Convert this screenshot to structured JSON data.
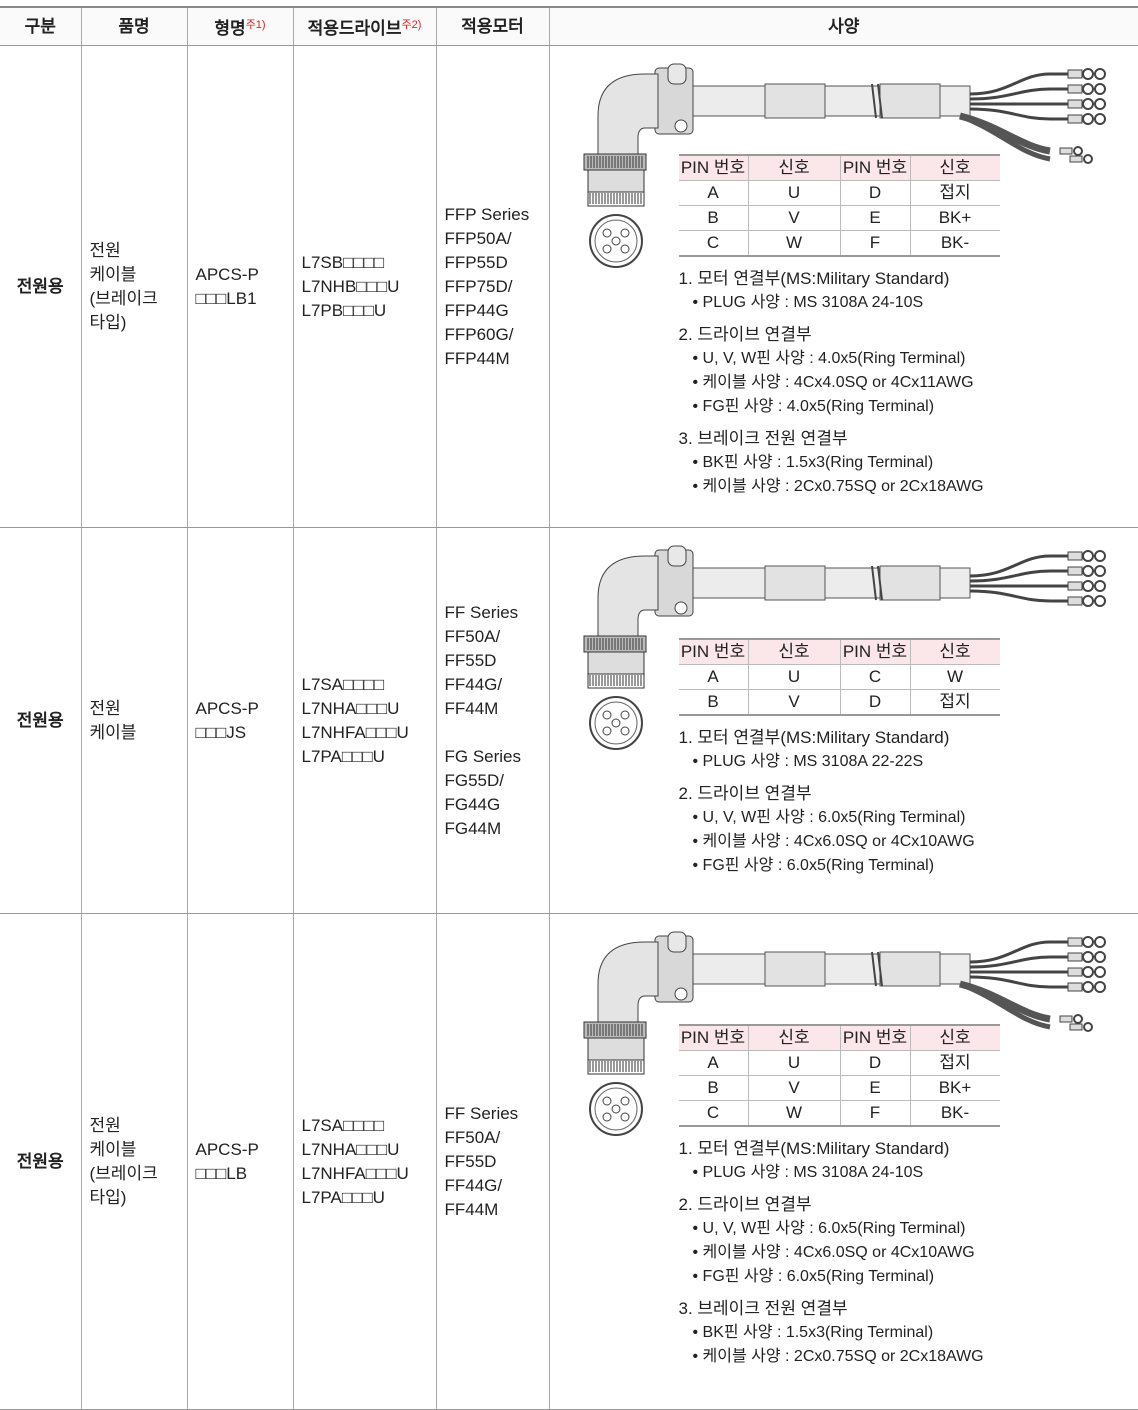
{
  "header": {
    "category": "구분",
    "product": "품명",
    "model": "형명",
    "model_note": "주1)",
    "drive": "적용드라이브",
    "drive_note": "주2)",
    "motor": "적용모터",
    "spec": "사양"
  },
  "rows": [
    {
      "category": "전원용",
      "product": [
        "전원",
        "케이블",
        "(브레이크",
        "타입)"
      ],
      "model": [
        "APCS-P",
        "□□□LB1"
      ],
      "drives": [
        "L7SB□□□□",
        "L7NHB□□□U",
        "L7PB□□□U"
      ],
      "motors": [
        [
          "FFP Series",
          "FFP50A/",
          "FFP55D",
          "FFP75D/",
          "FFP44G",
          "FFP60G/",
          "FFP44M"
        ]
      ],
      "pin_table": {
        "header": [
          "PIN 번호",
          "신호",
          "PIN 번호",
          "신호"
        ],
        "rows": [
          [
            "A",
            "U",
            "D",
            "접지"
          ],
          [
            "B",
            "V",
            "E",
            "BK+"
          ],
          [
            "C",
            "W",
            "F",
            "BK-"
          ]
        ]
      },
      "sections": [
        {
          "title": "1. 모터 연결부(MS:Military Standard)",
          "items": [
            "PLUG 사양 : MS 3108A 24-10S"
          ]
        },
        {
          "title": "2. 드라이브 연결부",
          "items": [
            "U, V, W핀 사양 : 4.0x5(Ring Terminal)",
            "케이블 사양 : 4Cx4.0SQ or 4Cx11AWG",
            "FG핀 사양 : 4.0x5(Ring Terminal)"
          ]
        },
        {
          "title": "3. 브레이크 전원 연결부",
          "items": [
            "BK핀 사양 : 1.5x3(Ring Terminal)",
            "케이블 사양 : 2Cx0.75SQ or 2Cx18AWG"
          ]
        }
      ]
    },
    {
      "category": "전원용",
      "product": [
        "전원",
        "케이블"
      ],
      "model": [
        "APCS-P",
        "□□□JS"
      ],
      "drives": [
        "L7SA□□□□",
        "L7NHA□□□U",
        "L7NHFA□□□U",
        "L7PA□□□U"
      ],
      "motors": [
        [
          "FF Series",
          "FF50A/",
          "FF55D",
          "FF44G/",
          "FF44M"
        ],
        [
          "FG Series",
          "FG55D/",
          "FG44G",
          "FG44M"
        ]
      ],
      "pin_table": {
        "header": [
          "PIN 번호",
          "신호",
          "PIN 번호",
          "신호"
        ],
        "rows": [
          [
            "A",
            "U",
            "C",
            "W"
          ],
          [
            "B",
            "V",
            "D",
            "접지"
          ]
        ]
      },
      "sections": [
        {
          "title": "1. 모터 연결부(MS:Military Standard)",
          "items": [
            "PLUG 사양 : MS 3108A 22-22S"
          ]
        },
        {
          "title": "2. 드라이브 연결부",
          "items": [
            "U, V, W핀 사양 : 6.0x5(Ring Terminal)",
            "케이블 사양 : 4Cx6.0SQ or 4Cx10AWG",
            "FG핀 사양 : 6.0x5(Ring Terminal)"
          ]
        }
      ]
    },
    {
      "category": "전원용",
      "product": [
        "전원",
        "케이블",
        "(브레이크",
        "타입)"
      ],
      "model": [
        "APCS-P",
        "□□□LB"
      ],
      "drives": [
        "L7SA□□□□",
        "L7NHA□□□U",
        "L7NHFA□□□U",
        "L7PA□□□U"
      ],
      "motors": [
        [
          "FF Series",
          "FF50A/",
          "FF55D",
          "FF44G/",
          "FF44M"
        ]
      ],
      "pin_table": {
        "header": [
          "PIN 번호",
          "신호",
          "PIN 번호",
          "신호"
        ],
        "rows": [
          [
            "A",
            "U",
            "D",
            "접지"
          ],
          [
            "B",
            "V",
            "E",
            "BK+"
          ],
          [
            "C",
            "W",
            "F",
            "BK-"
          ]
        ]
      },
      "sections": [
        {
          "title": "1. 모터 연결부(MS:Military Standard)",
          "items": [
            "PLUG 사양 : MS 3108A 24-10S"
          ]
        },
        {
          "title": "2. 드라이브 연결부",
          "items": [
            "U, V, W핀 사양 : 6.0x5(Ring Terminal)",
            "케이블 사양 : 4Cx6.0SQ or 4Cx10AWG",
            "FG핀 사양 : 6.0x5(Ring Terminal)"
          ]
        },
        {
          "title": "3. 브레이크 전원 연결부",
          "items": [
            "BK핀 사양 : 1.5x3(Ring Terminal)",
            "케이블 사양 : 2Cx0.75SQ or 2Cx18AWG"
          ]
        }
      ]
    }
  ]
}
